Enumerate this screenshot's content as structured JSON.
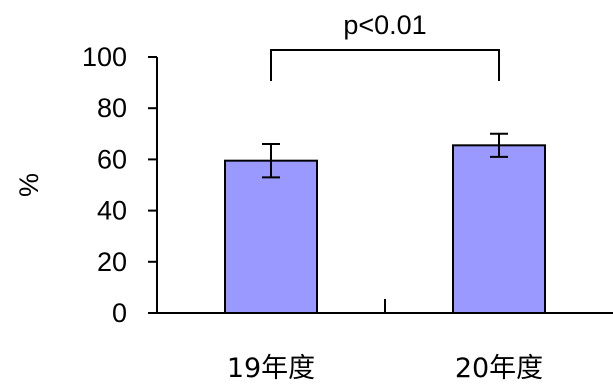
{
  "chart_data": {
    "type": "bar",
    "categories": [
      "19年度",
      "20年度"
    ],
    "values": [
      59.5,
      65.5
    ],
    "error_bars": [
      6.5,
      4.5
    ],
    "ylabel": "%",
    "xlabel": "",
    "ylim": [
      0,
      100
    ],
    "yticks": [
      0,
      20,
      40,
      60,
      80,
      100
    ],
    "grid": false,
    "legend": "none",
    "bar_color": "#9999ff",
    "significance": {
      "between": [
        0,
        1
      ],
      "label": "p<0.01"
    }
  }
}
